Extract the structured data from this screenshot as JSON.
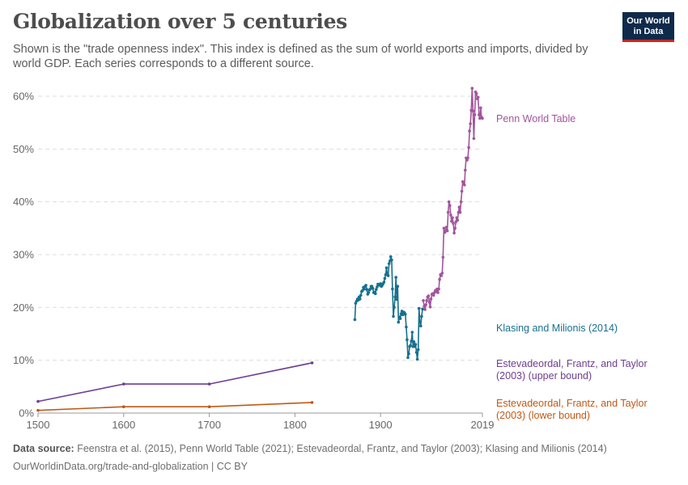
{
  "header": {
    "title": "Globalization over 5 centuries",
    "subtitle": "Shown is the \"trade openness index\". This index is defined as the sum of world exports and imports, divided by world GDP. Each series corresponds to a different source.",
    "logo_line1": "Our World",
    "logo_line2": "in Data"
  },
  "footer": {
    "source_label": "Data source:",
    "source_text": " Feenstra et al. (2015), Penn World Table (2021); Estevadeordal, Frantz, and Taylor (2003); Klasing and Milionis (2014)",
    "url": "OurWorldinData.org/trade-and-globalization | CC BY"
  },
  "chart_data": {
    "type": "line",
    "title": "Globalization over 5 centuries",
    "xlim": [
      1500,
      2019
    ],
    "ylim": [
      0,
      60
    ],
    "x_ticks": [
      1500,
      1600,
      1700,
      1800,
      1900,
      2019
    ],
    "y_ticks": [
      0,
      10,
      20,
      30,
      40,
      50,
      60
    ],
    "y_tick_labels": [
      "0%",
      "10%",
      "20%",
      "30%",
      "40%",
      "50%",
      "60%"
    ],
    "grid": true,
    "legend": "right, labels at line ends",
    "series": [
      {
        "name": "Penn World Table",
        "label_lines": [
          "Penn World Table"
        ],
        "color": "#a2559c",
        "points": [
          [
            1950,
            21.3
          ],
          [
            1951,
            20.2
          ],
          [
            1952,
            19.6
          ],
          [
            1953,
            20.5
          ],
          [
            1954,
            21.3
          ],
          [
            1955,
            22.0
          ],
          [
            1956,
            22.2
          ],
          [
            1957,
            21.0
          ],
          [
            1958,
            20.1
          ],
          [
            1959,
            21.6
          ],
          [
            1960,
            22.5
          ],
          [
            1961,
            22.6
          ],
          [
            1962,
            22.3
          ],
          [
            1963,
            22.8
          ],
          [
            1964,
            23.2
          ],
          [
            1965,
            23.0
          ],
          [
            1966,
            23.5
          ],
          [
            1967,
            22.8
          ],
          [
            1968,
            23.5
          ],
          [
            1969,
            25.3
          ],
          [
            1970,
            26.2
          ],
          [
            1971,
            26.0
          ],
          [
            1972,
            26.5
          ],
          [
            1973,
            29.5
          ],
          [
            1974,
            35.0
          ],
          [
            1975,
            34.2
          ],
          [
            1976,
            34.5
          ],
          [
            1977,
            35.2
          ],
          [
            1978,
            34.5
          ],
          [
            1979,
            38.0
          ],
          [
            1980,
            40.0
          ],
          [
            1981,
            39.3
          ],
          [
            1982,
            37.5
          ],
          [
            1983,
            36.3
          ],
          [
            1984,
            37.0
          ],
          [
            1985,
            35.9
          ],
          [
            1986,
            34.1
          ],
          [
            1987,
            35.0
          ],
          [
            1988,
            36.2
          ],
          [
            1989,
            37.0
          ],
          [
            1990,
            36.5
          ],
          [
            1991,
            38.0
          ],
          [
            1992,
            39.0
          ],
          [
            1993,
            38.0
          ],
          [
            1994,
            40.0
          ],
          [
            1995,
            42.0
          ],
          [
            1996,
            43.8
          ],
          [
            1997,
            43.5
          ],
          [
            1998,
            43.2
          ],
          [
            1999,
            46.0
          ],
          [
            2000,
            48.3
          ],
          [
            2001,
            47.9
          ],
          [
            2002,
            48.3
          ],
          [
            2003,
            50.3
          ],
          [
            2004,
            53.4
          ],
          [
            2005,
            54.8
          ],
          [
            2006,
            57.3
          ],
          [
            2007,
            61.5
          ],
          [
            2008,
            57.2
          ],
          [
            2009,
            52.0
          ],
          [
            2010,
            56.5
          ],
          [
            2011,
            60.8
          ],
          [
            2012,
            60.5
          ],
          [
            2013,
            59.5
          ],
          [
            2014,
            59.8
          ],
          [
            2015,
            56.5
          ],
          [
            2016,
            55.8
          ],
          [
            2017,
            57.8
          ],
          [
            2018,
            56.0
          ],
          [
            2019,
            55.8
          ]
        ]
      },
      {
        "name": "Klasing and Milionis (2014)",
        "label_lines": [
          "Klasing and Milionis (2014)"
        ],
        "color": "#18708e",
        "points": [
          [
            1870,
            17.7
          ],
          [
            1871,
            20.8
          ],
          [
            1872,
            21.2
          ],
          [
            1873,
            21.6
          ],
          [
            1874,
            21.4
          ],
          [
            1875,
            22.0
          ],
          [
            1876,
            21.6
          ],
          [
            1877,
            22.3
          ],
          [
            1878,
            23.0
          ],
          [
            1879,
            23.2
          ],
          [
            1880,
            23.8
          ],
          [
            1881,
            23.5
          ],
          [
            1882,
            24.0
          ],
          [
            1883,
            24.2
          ],
          [
            1884,
            23.4
          ],
          [
            1885,
            22.5
          ],
          [
            1886,
            22.8
          ],
          [
            1887,
            23.3
          ],
          [
            1888,
            23.5
          ],
          [
            1889,
            24.0
          ],
          [
            1890,
            24.0
          ],
          [
            1891,
            23.6
          ],
          [
            1892,
            22.8
          ],
          [
            1893,
            22.9
          ],
          [
            1894,
            22.6
          ],
          [
            1895,
            23.4
          ],
          [
            1896,
            23.9
          ],
          [
            1897,
            24.4
          ],
          [
            1898,
            24.3
          ],
          [
            1899,
            24.2
          ],
          [
            1900,
            24.5
          ],
          [
            1901,
            24.0
          ],
          [
            1902,
            24.2
          ],
          [
            1903,
            24.5
          ],
          [
            1904,
            24.8
          ],
          [
            1905,
            25.5
          ],
          [
            1906,
            26.2
          ],
          [
            1907,
            27.5
          ],
          [
            1908,
            26.2
          ],
          [
            1909,
            26.0
          ],
          [
            1910,
            28.3
          ],
          [
            1911,
            28.8
          ],
          [
            1912,
            29.6
          ],
          [
            1913,
            29.0
          ],
          [
            1914,
            23.5
          ],
          [
            1915,
            18.3
          ],
          [
            1916,
            20.0
          ],
          [
            1917,
            22.0
          ],
          [
            1918,
            25.7
          ],
          [
            1919,
            21.5
          ],
          [
            1920,
            24.0
          ],
          [
            1921,
            17.2
          ],
          [
            1922,
            18.2
          ],
          [
            1923,
            17.9
          ],
          [
            1924,
            18.8
          ],
          [
            1925,
            19.3
          ],
          [
            1926,
            18.6
          ],
          [
            1927,
            19.1
          ],
          [
            1928,
            19.0
          ],
          [
            1929,
            18.7
          ],
          [
            1930,
            16.3
          ],
          [
            1931,
            13.9
          ],
          [
            1932,
            10.5
          ],
          [
            1933,
            11.2
          ],
          [
            1934,
            12.6
          ],
          [
            1935,
            12.8
          ],
          [
            1936,
            13.6
          ],
          [
            1937,
            15.3
          ],
          [
            1938,
            12.6
          ],
          [
            1939,
            13.5
          ],
          [
            1940,
            12.6
          ],
          [
            1941,
            13.0
          ],
          [
            1942,
            11.5
          ],
          [
            1943,
            10.2
          ],
          [
            1944,
            12.0
          ],
          [
            1945,
            19.8
          ],
          [
            1946,
            17.2
          ],
          [
            1947,
            16.5
          ],
          [
            1948,
            18.3
          ],
          [
            1949,
            19.7
          ]
        ]
      },
      {
        "name": "Estevadeordal, Frantz, and Taylor (2003) (upper bound)",
        "label_lines": [
          "Estevadeordal, Frantz, and Taylor",
          "(2003) (upper bound)"
        ],
        "color": "#6d3e91",
        "points": [
          [
            1500,
            2.2
          ],
          [
            1600,
            5.5
          ],
          [
            1700,
            5.5
          ],
          [
            1820,
            9.5
          ]
        ]
      },
      {
        "name": "Estevadeordal, Frantz, and Taylor (2003) (lower bound)",
        "label_lines": [
          "Estevadeordal, Frantz, and Taylor",
          "(2003) (lower bound)"
        ],
        "color": "#c05917",
        "points": [
          [
            1500,
            0.5
          ],
          [
            1600,
            1.2
          ],
          [
            1700,
            1.2
          ],
          [
            1820,
            2.0
          ]
        ]
      }
    ]
  }
}
